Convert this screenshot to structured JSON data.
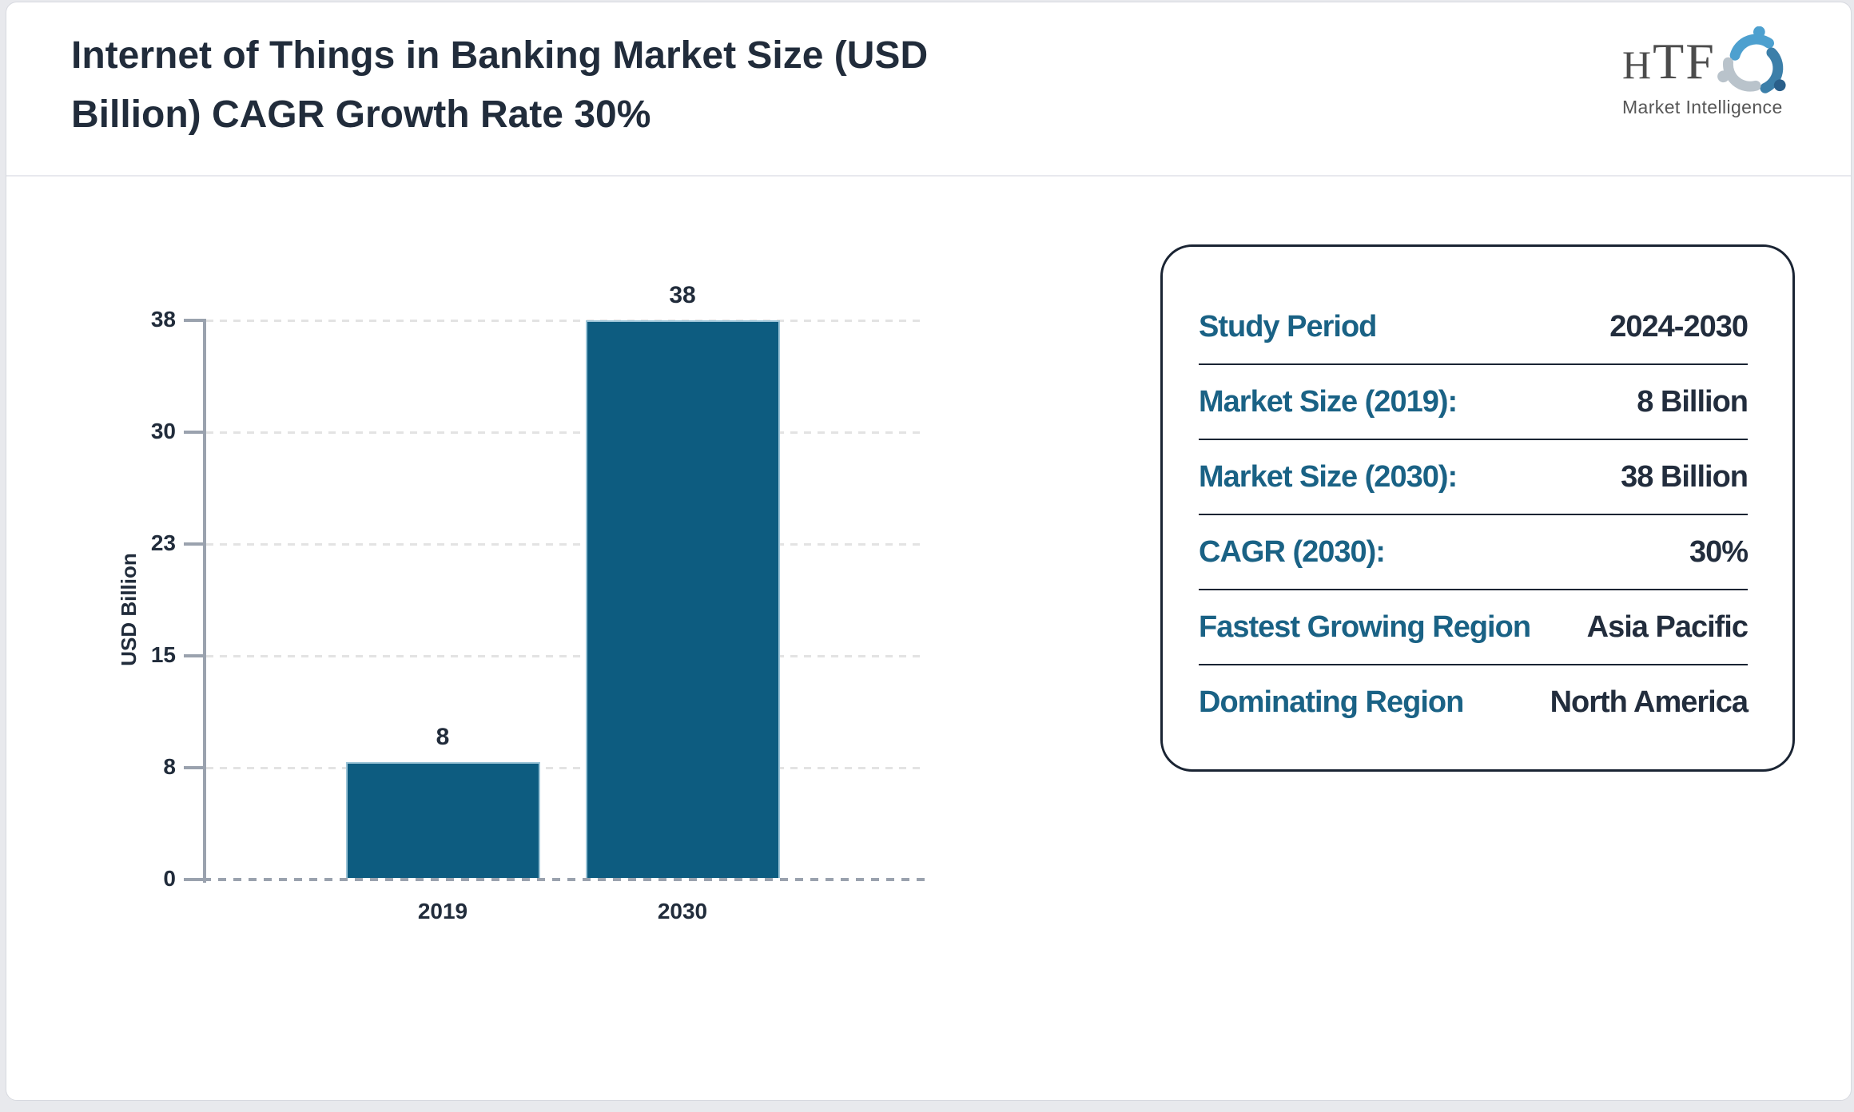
{
  "header": {
    "title_line1": "Internet of Things in Banking Market Size (USD",
    "title_line2": "Billion) CAGR Growth Rate 30%",
    "logo": {
      "abbr": "HTF",
      "subtitle": "Market Intelligence"
    }
  },
  "chart_data": {
    "type": "bar",
    "title": "Internet of Things in Banking Market Size (USD Billion) CAGR Growth Rate 30%",
    "categories": [
      "2019",
      "2030"
    ],
    "values": [
      8,
      38
    ],
    "data_labels": [
      "8",
      "38"
    ],
    "xlabel": "",
    "ylabel": "USD Billion",
    "ylim": [
      0,
      38
    ],
    "yticks": [
      0,
      8,
      15,
      23,
      30,
      38
    ],
    "grid": "horizontal-dashed",
    "legend": "none",
    "bar_color": "#0d5c80"
  },
  "info_panel": {
    "rows": [
      {
        "label": "Study Period",
        "value": "2024-2030"
      },
      {
        "label": "Market Size (2019):",
        "value": "8 Billion"
      },
      {
        "label": "Market Size (2030):",
        "value": "38 Billion"
      },
      {
        "label": "CAGR (2030):",
        "value": "30%"
      },
      {
        "label": "Fastest Growing Region",
        "value": "Asia Pacific"
      },
      {
        "label": "Dominating Region",
        "value": "North America"
      }
    ]
  },
  "colors": {
    "bar": "#0d5c80",
    "bar_edge": "#9cc5d8",
    "panel_label": "#1a6285",
    "text_dark": "#222d3d",
    "axis": "#9aa2ae",
    "gridline": "#e3e3e3",
    "page_background": "#e8e9ed",
    "panel_border": "#1a2433"
  }
}
